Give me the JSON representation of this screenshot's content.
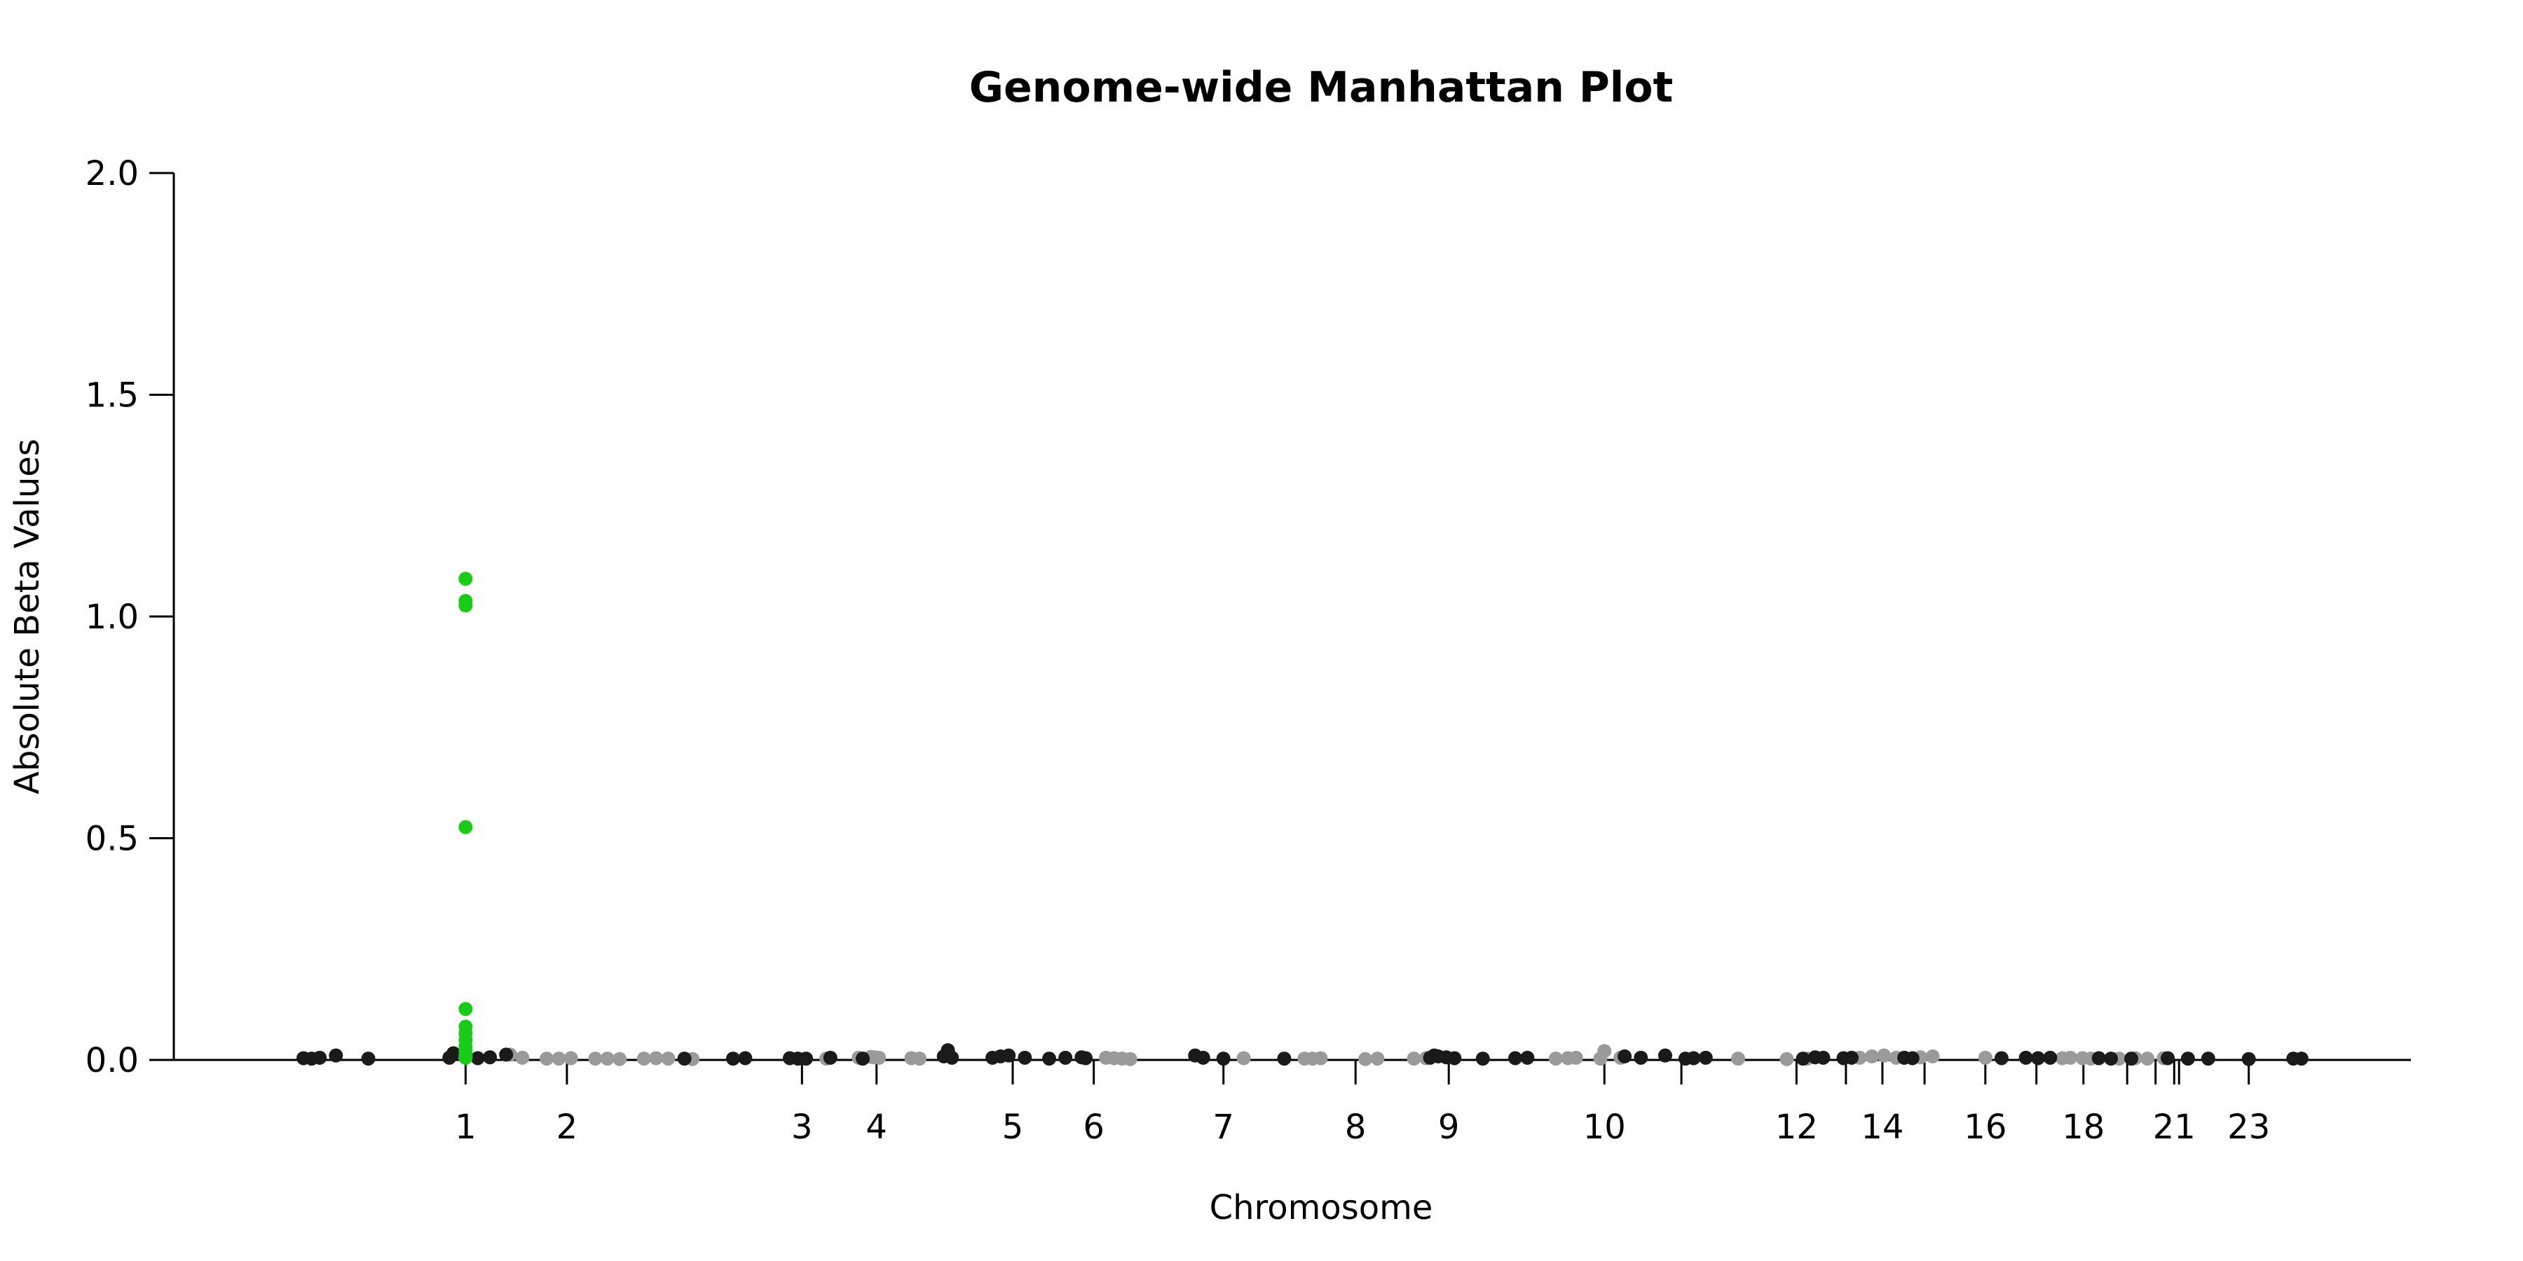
{
  "chart_data": {
    "type": "scatter",
    "title": "Genome-wide Manhattan Plot",
    "xlabel": "Chromosome",
    "ylabel": "Absolute Beta Values",
    "ylim": [
      0,
      2.0
    ],
    "yticks": [
      0.0,
      0.5,
      1.0,
      1.5,
      2.0
    ],
    "ytick_labels": [
      "0.0",
      "0.5",
      "1.0",
      "1.5",
      "2.0"
    ],
    "xlim": [
      -2.6,
      25.0
    ],
    "chromosome_ticks": [
      {
        "x": 1.0,
        "label": "1"
      },
      {
        "x": 2.25,
        "label": "2"
      },
      {
        "x": 5.15,
        "label": "3"
      },
      {
        "x": 6.07,
        "label": "4"
      },
      {
        "x": 7.75,
        "label": "5"
      },
      {
        "x": 8.75,
        "label": "6"
      },
      {
        "x": 10.35,
        "label": "7"
      },
      {
        "x": 11.98,
        "label": "8"
      },
      {
        "x": 13.13,
        "label": "9"
      },
      {
        "x": 15.05,
        "label": "10"
      },
      {
        "x": 16.0,
        "label": ""
      },
      {
        "x": 17.42,
        "label": "12"
      },
      {
        "x": 18.03,
        "label": ""
      },
      {
        "x": 18.48,
        "label": "14"
      },
      {
        "x": 19.0,
        "label": ""
      },
      {
        "x": 19.75,
        "label": "16"
      },
      {
        "x": 20.38,
        "label": ""
      },
      {
        "x": 20.96,
        "label": "18"
      },
      {
        "x": 21.5,
        "label": ""
      },
      {
        "x": 21.85,
        "label": ""
      },
      {
        "x": 22.08,
        "label": "21"
      },
      {
        "x": 22.14,
        "label": ""
      },
      {
        "x": 23.0,
        "label": "23"
      }
    ],
    "colors": {
      "dark": "#1a1a1a",
      "light": "#9a9a9a",
      "highlight": "#18cc18"
    },
    "series": [
      {
        "color": "highlight",
        "points": [
          [
            1.0,
            1.085
          ],
          [
            1.0,
            1.035
          ],
          [
            1.0,
            1.025
          ],
          [
            1.0,
            0.525
          ],
          [
            1.0,
            0.115
          ],
          [
            1.0,
            0.075
          ],
          [
            1.0,
            0.06
          ],
          [
            1.0,
            0.045
          ],
          [
            1.0,
            0.03
          ],
          [
            1.0,
            0.02
          ],
          [
            1.0,
            0.01
          ],
          [
            1.0,
            0.005
          ]
        ]
      },
      {
        "color": "dark",
        "points": [
          [
            -1.0,
            0.004
          ],
          [
            -0.9,
            0.003
          ],
          [
            -0.8,
            0.005
          ],
          [
            -0.6,
            0.01
          ],
          [
            -0.2,
            0.003
          ],
          [
            0.8,
            0.005
          ],
          [
            0.85,
            0.015
          ],
          [
            1.15,
            0.004
          ],
          [
            1.3,
            0.006
          ],
          [
            1.5,
            0.012
          ],
          [
            3.7,
            0.003
          ],
          [
            4.3,
            0.003
          ],
          [
            4.45,
            0.004
          ],
          [
            5.0,
            0.004
          ],
          [
            5.1,
            0.003
          ],
          [
            5.2,
            0.003
          ],
          [
            5.5,
            0.005
          ],
          [
            5.9,
            0.003
          ],
          [
            6.9,
            0.008
          ],
          [
            6.95,
            0.022
          ],
          [
            7.0,
            0.005
          ],
          [
            7.5,
            0.005
          ],
          [
            7.6,
            0.008
          ],
          [
            7.7,
            0.01
          ],
          [
            7.9,
            0.005
          ],
          [
            8.2,
            0.003
          ],
          [
            8.4,
            0.005
          ],
          [
            8.6,
            0.006
          ],
          [
            8.65,
            0.004
          ],
          [
            10.0,
            0.01
          ],
          [
            10.1,
            0.005
          ],
          [
            10.35,
            0.003
          ],
          [
            11.1,
            0.003
          ],
          [
            12.9,
            0.005
          ],
          [
            12.95,
            0.01
          ],
          [
            13.0,
            0.008
          ],
          [
            13.1,
            0.006
          ],
          [
            13.2,
            0.004
          ],
          [
            13.55,
            0.003
          ],
          [
            13.95,
            0.004
          ],
          [
            14.1,
            0.005
          ],
          [
            15.3,
            0.008
          ],
          [
            15.5,
            0.005
          ],
          [
            15.8,
            0.01
          ],
          [
            16.05,
            0.003
          ],
          [
            16.15,
            0.004
          ],
          [
            16.3,
            0.005
          ],
          [
            17.5,
            0.003
          ],
          [
            17.65,
            0.006
          ],
          [
            17.75,
            0.005
          ],
          [
            18.0,
            0.004
          ],
          [
            18.1,
            0.005
          ],
          [
            18.75,
            0.005
          ],
          [
            18.85,
            0.004
          ],
          [
            19.95,
            0.004
          ],
          [
            20.25,
            0.005
          ],
          [
            20.4,
            0.004
          ],
          [
            20.55,
            0.005
          ],
          [
            21.15,
            0.004
          ],
          [
            21.3,
            0.003
          ],
          [
            21.55,
            0.003
          ],
          [
            22.0,
            0.004
          ],
          [
            22.25,
            0.003
          ],
          [
            22.5,
            0.003
          ],
          [
            23.0,
            0.002
          ],
          [
            23.55,
            0.003
          ],
          [
            23.65,
            0.003
          ]
        ]
      },
      {
        "color": "light",
        "points": [
          [
            1.55,
            0.012
          ],
          [
            1.7,
            0.005
          ],
          [
            2.0,
            0.003
          ],
          [
            2.15,
            0.003
          ],
          [
            2.3,
            0.004
          ],
          [
            2.6,
            0.003
          ],
          [
            2.75,
            0.003
          ],
          [
            2.9,
            0.002
          ],
          [
            3.2,
            0.003
          ],
          [
            3.35,
            0.004
          ],
          [
            3.5,
            0.003
          ],
          [
            3.8,
            0.002
          ],
          [
            5.45,
            0.003
          ],
          [
            5.85,
            0.005
          ],
          [
            6.0,
            0.007
          ],
          [
            6.05,
            0.006
          ],
          [
            6.1,
            0.005
          ],
          [
            6.5,
            0.004
          ],
          [
            6.6,
            0.003
          ],
          [
            8.9,
            0.005
          ],
          [
            9.0,
            0.004
          ],
          [
            9.1,
            0.003
          ],
          [
            9.2,
            0.002
          ],
          [
            10.6,
            0.004
          ],
          [
            11.35,
            0.003
          ],
          [
            11.45,
            0.003
          ],
          [
            11.55,
            0.004
          ],
          [
            12.1,
            0.002
          ],
          [
            12.25,
            0.003
          ],
          [
            12.7,
            0.003
          ],
          [
            12.85,
            0.004
          ],
          [
            14.45,
            0.003
          ],
          [
            14.6,
            0.004
          ],
          [
            14.7,
            0.005
          ],
          [
            15.0,
            0.003
          ],
          [
            15.05,
            0.02
          ],
          [
            15.25,
            0.005
          ],
          [
            16.7,
            0.003
          ],
          [
            17.3,
            0.002
          ],
          [
            17.55,
            0.003
          ],
          [
            18.2,
            0.005
          ],
          [
            18.35,
            0.008
          ],
          [
            18.5,
            0.01
          ],
          [
            18.65,
            0.005
          ],
          [
            18.95,
            0.006
          ],
          [
            19.1,
            0.008
          ],
          [
            19.75,
            0.005
          ],
          [
            20.7,
            0.004
          ],
          [
            20.8,
            0.005
          ],
          [
            20.95,
            0.004
          ],
          [
            21.05,
            0.003
          ],
          [
            21.4,
            0.003
          ],
          [
            21.6,
            0.004
          ],
          [
            21.75,
            0.003
          ],
          [
            21.95,
            0.004
          ]
        ]
      }
    ]
  }
}
